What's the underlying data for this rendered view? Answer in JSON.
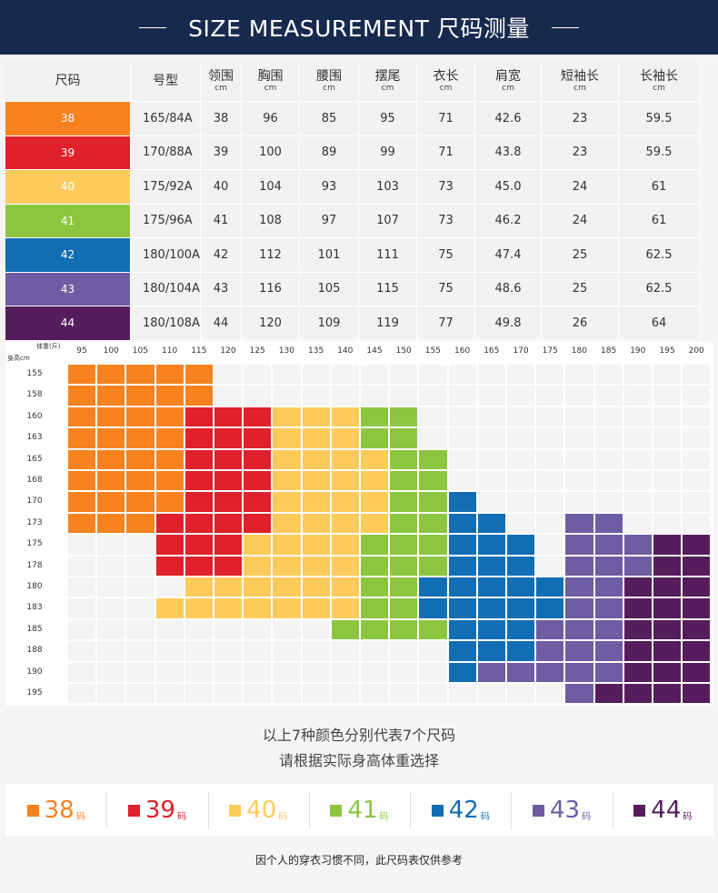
{
  "header": {
    "title": "SIZE MEASUREMENT   尺码测量"
  },
  "table": {
    "headers": [
      {
        "label": "尺码",
        "unit": ""
      },
      {
        "label": "号型",
        "unit": ""
      },
      {
        "label": "领围",
        "unit": "cm"
      },
      {
        "label": "胸围",
        "unit": "cm"
      },
      {
        "label": "腰围",
        "unit": "cm"
      },
      {
        "label": "摆尾",
        "unit": "cm"
      },
      {
        "label": "衣长",
        "unit": "cm"
      },
      {
        "label": "肩宽",
        "unit": "cm"
      },
      {
        "label": "短袖长",
        "unit": "cm"
      },
      {
        "label": "长袖长",
        "unit": "cm"
      }
    ],
    "rows": [
      {
        "size": "38",
        "model": "165/84A",
        "collar": "38",
        "chest": "96",
        "waist": "85",
        "hem": "95",
        "length": "71",
        "shoulder": "42.6",
        "short_sleeve": "23",
        "long_sleeve": "59.5"
      },
      {
        "size": "39",
        "model": "170/88A",
        "collar": "39",
        "chest": "100",
        "waist": "89",
        "hem": "99",
        "length": "71",
        "shoulder": "43.8",
        "short_sleeve": "23",
        "long_sleeve": "59.5"
      },
      {
        "size": "40",
        "model": "175/92A",
        "collar": "40",
        "chest": "104",
        "waist": "93",
        "hem": "103",
        "length": "73",
        "shoulder": "45.0",
        "short_sleeve": "24",
        "long_sleeve": "61"
      },
      {
        "size": "41",
        "model": "175/96A",
        "collar": "41",
        "chest": "108",
        "waist": "97",
        "hem": "107",
        "length": "73",
        "shoulder": "46.2",
        "short_sleeve": "24",
        "long_sleeve": "61"
      },
      {
        "size": "42",
        "model": "180/100A",
        "collar": "42",
        "chest": "112",
        "waist": "101",
        "hem": "111",
        "length": "75",
        "shoulder": "47.4",
        "short_sleeve": "25",
        "long_sleeve": "62.5"
      },
      {
        "size": "43",
        "model": "180/104A",
        "collar": "43",
        "chest": "116",
        "waist": "105",
        "hem": "115",
        "length": "75",
        "shoulder": "48.6",
        "short_sleeve": "25",
        "long_sleeve": "62.5"
      },
      {
        "size": "44",
        "model": "180/108A",
        "collar": "44",
        "chest": "120",
        "waist": "109",
        "hem": "119",
        "length": "77",
        "shoulder": "49.8",
        "short_sleeve": "26",
        "long_sleeve": "64"
      }
    ]
  },
  "size_colors": {
    "38": "#f7821e",
    "39": "#e0202a",
    "40": "#fccb5c",
    "41": "#8cc641",
    "42": "#126eb4",
    "43": "#6d5da2",
    "44": "#551d5c"
  },
  "matrix": {
    "weight_axis_label": "体重(斤)",
    "height_axis_label": "身高cm",
    "weights": [
      "95",
      "100",
      "105",
      "110",
      "115",
      "120",
      "125",
      "130",
      "135",
      "140",
      "145",
      "150",
      "155",
      "160",
      "165",
      "170",
      "175",
      "180",
      "185",
      "190",
      "195",
      "200"
    ],
    "heights": [
      "155",
      "158",
      "160",
      "163",
      "165",
      "168",
      "170",
      "173",
      "175",
      "178",
      "180",
      "183",
      "185",
      "188",
      "190",
      "195"
    ],
    "grid": [
      [
        "38",
        "38",
        "38",
        "38",
        "38",
        "",
        "",
        "",
        "",
        "",
        "",
        "",
        "",
        "",
        "",
        "",
        "",
        "",
        "",
        "",
        "",
        ""
      ],
      [
        "38",
        "38",
        "38",
        "38",
        "38",
        "",
        "",
        "",
        "",
        "",
        "",
        "",
        "",
        "",
        "",
        "",
        "",
        "",
        "",
        "",
        "",
        ""
      ],
      [
        "38",
        "38",
        "38",
        "38",
        "39",
        "39",
        "39",
        "40",
        "40",
        "40",
        "41",
        "41",
        "",
        "",
        "",
        "",
        "",
        "",
        "",
        "",
        "",
        ""
      ],
      [
        "38",
        "38",
        "38",
        "38",
        "39",
        "39",
        "39",
        "40",
        "40",
        "40",
        "41",
        "41",
        "",
        "",
        "",
        "",
        "",
        "",
        "",
        "",
        "",
        ""
      ],
      [
        "38",
        "38",
        "38",
        "38",
        "39",
        "39",
        "39",
        "40",
        "40",
        "40",
        "40",
        "41",
        "41",
        "",
        "",
        "",
        "",
        "",
        "",
        "",
        "",
        ""
      ],
      [
        "38",
        "38",
        "38",
        "38",
        "39",
        "39",
        "39",
        "40",
        "40",
        "40",
        "40",
        "41",
        "41",
        "",
        "",
        "",
        "",
        "",
        "",
        "",
        "",
        ""
      ],
      [
        "38",
        "38",
        "38",
        "38",
        "39",
        "39",
        "39",
        "40",
        "40",
        "40",
        "40",
        "41",
        "41",
        "42",
        "",
        "",
        "",
        "",
        "",
        "",
        "",
        ""
      ],
      [
        "38",
        "38",
        "38",
        "39",
        "39",
        "39",
        "39",
        "40",
        "40",
        "40",
        "40",
        "41",
        "41",
        "42",
        "42",
        "",
        "",
        "43",
        "43",
        "",
        "",
        ""
      ],
      [
        "",
        "",
        "",
        "39",
        "39",
        "39",
        "40",
        "40",
        "40",
        "40",
        "41",
        "41",
        "41",
        "42",
        "42",
        "42",
        "",
        "43",
        "43",
        "43",
        "44",
        "44"
      ],
      [
        "",
        "",
        "",
        "39",
        "39",
        "39",
        "40",
        "40",
        "40",
        "40",
        "41",
        "41",
        "41",
        "42",
        "42",
        "42",
        "",
        "43",
        "43",
        "43",
        "44",
        "44"
      ],
      [
        "",
        "",
        "",
        "",
        "40",
        "40",
        "40",
        "40",
        "40",
        "40",
        "41",
        "41",
        "42",
        "42",
        "42",
        "42",
        "42",
        "43",
        "43",
        "44",
        "44",
        "44"
      ],
      [
        "",
        "",
        "",
        "40",
        "40",
        "40",
        "40",
        "40",
        "40",
        "40",
        "41",
        "41",
        "42",
        "42",
        "42",
        "42",
        "42",
        "43",
        "43",
        "44",
        "44",
        "44"
      ],
      [
        "",
        "",
        "",
        "",
        "",
        "",
        "",
        "",
        "",
        "41",
        "41",
        "41",
        "41",
        "42",
        "42",
        "42",
        "43",
        "43",
        "43",
        "44",
        "44",
        "44"
      ],
      [
        "",
        "",
        "",
        "",
        "",
        "",
        "",
        "",
        "",
        "",
        "",
        "",
        "",
        "42",
        "42",
        "42",
        "43",
        "43",
        "43",
        "44",
        "44",
        "44"
      ],
      [
        "",
        "",
        "",
        "",
        "",
        "",
        "",
        "",
        "",
        "",
        "",
        "",
        "",
        "42",
        "43",
        "43",
        "43",
        "43",
        "43",
        "44",
        "44",
        "44"
      ],
      [
        "",
        "",
        "",
        "",
        "",
        "",
        "",
        "",
        "",
        "",
        "",
        "",
        "",
        "",
        "",
        "",
        "",
        "43",
        "44",
        "44",
        "44",
        "44"
      ]
    ]
  },
  "notes": {
    "line1": "以上7种颜色分别代表7个尺码",
    "line2": "请根据实际身高体重选择"
  },
  "legend": [
    {
      "size": "38",
      "unit": "码"
    },
    {
      "size": "39",
      "unit": "码"
    },
    {
      "size": "40",
      "unit": "码"
    },
    {
      "size": "41",
      "unit": "码"
    },
    {
      "size": "42",
      "unit": "码"
    },
    {
      "size": "43",
      "unit": "码"
    },
    {
      "size": "44",
      "unit": "码"
    }
  ],
  "footnote": "因个人的穿衣习惯不同，此尺码表仅供参考"
}
